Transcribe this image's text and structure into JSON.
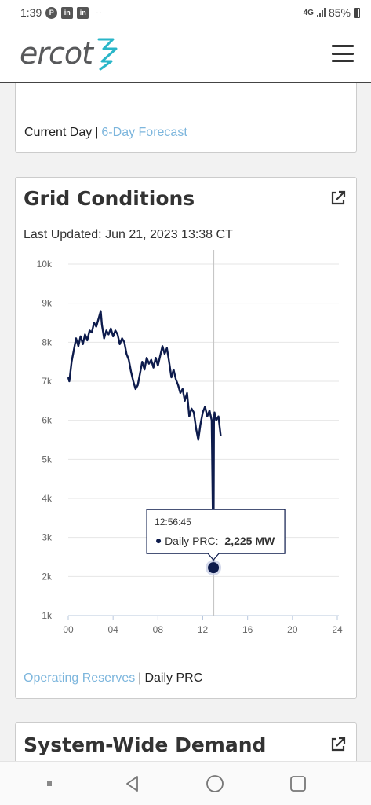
{
  "status_bar": {
    "time": "1:39",
    "icons": [
      "pinterest-icon",
      "linkedin-icon",
      "linkedin-icon"
    ],
    "overflow": "···",
    "network": "4G",
    "battery": "85%"
  },
  "header": {
    "logo_text": "ercot",
    "brand_colors": {
      "logo_text": "#58595b",
      "logo_mark": "#29b6c8"
    }
  },
  "top_card": {
    "current_day": "Current Day",
    "separator": "|",
    "forecast_link": "6-Day Forecast"
  },
  "grid_card": {
    "title": "Grid Conditions",
    "last_updated": "Last Updated: Jun 21, 2023 13:38 CT",
    "link_operating": "Operating Reserves",
    "separator": "|",
    "daily_prc": "Daily PRC"
  },
  "demand_card": {
    "title": "System-Wide Demand"
  },
  "chart_data": {
    "type": "line",
    "x_ticks": [
      "00",
      "04",
      "08",
      "12",
      "16",
      "20",
      "24"
    ],
    "y_ticks": [
      "1k",
      "2k",
      "3k",
      "4k",
      "5k",
      "6k",
      "7k",
      "8k",
      "9k",
      "10k"
    ],
    "xlim": [
      0,
      24
    ],
    "ylim": [
      1000,
      10000
    ],
    "grid": true,
    "line_color": "#0d1b4c",
    "series": [
      {
        "x": [
          0,
          0.1,
          0.3,
          0.5,
          0.7,
          0.9,
          1.1,
          1.3,
          1.5,
          1.7,
          1.9,
          2.1,
          2.3,
          2.5,
          2.7,
          2.9,
          3.0,
          3.2,
          3.4,
          3.6,
          3.8,
          4.0,
          4.2,
          4.4,
          4.6,
          4.8,
          5.0,
          5.2,
          5.4,
          5.6,
          5.8,
          6.0,
          6.2,
          6.4,
          6.6,
          6.8,
          7.0,
          7.2,
          7.4,
          7.6,
          7.8,
          8.0,
          8.2,
          8.4,
          8.6,
          8.8,
          9.0,
          9.2,
          9.4,
          9.6,
          9.8,
          10.0,
          10.2,
          10.4,
          10.6,
          10.8,
          11.0,
          11.2,
          11.4,
          11.6,
          11.8,
          12.0,
          12.2,
          12.4,
          12.6,
          12.8,
          12.95,
          13.0,
          13.05,
          13.2,
          13.4,
          13.6
        ],
        "y": [
          7100,
          7000,
          7500,
          7800,
          8100,
          7900,
          8150,
          7950,
          8200,
          8050,
          8300,
          8250,
          8500,
          8400,
          8600,
          8800,
          8450,
          8100,
          8300,
          8200,
          8350,
          8150,
          8300,
          8200,
          7950,
          8100,
          8000,
          7700,
          7550,
          7250,
          7000,
          6800,
          6900,
          7200,
          7500,
          7300,
          7600,
          7450,
          7550,
          7350,
          7600,
          7400,
          7650,
          7900,
          7700,
          7850,
          7500,
          7100,
          7300,
          7050,
          6900,
          6700,
          6800,
          6500,
          6700,
          6100,
          6300,
          6200,
          5800,
          5500,
          5900,
          6200,
          6350,
          6100,
          6250,
          6000,
          2225,
          6050,
          6200,
          6000,
          6100,
          5600
        ]
      }
    ],
    "tooltip": {
      "time": "12:56:45",
      "label": "Daily PRC:",
      "value": "2,225 MW",
      "x": 12.95,
      "y": 2225
    }
  },
  "nav_bar": {
    "items": [
      "recents-icon",
      "back-icon",
      "home-icon",
      "overview-icon"
    ]
  }
}
